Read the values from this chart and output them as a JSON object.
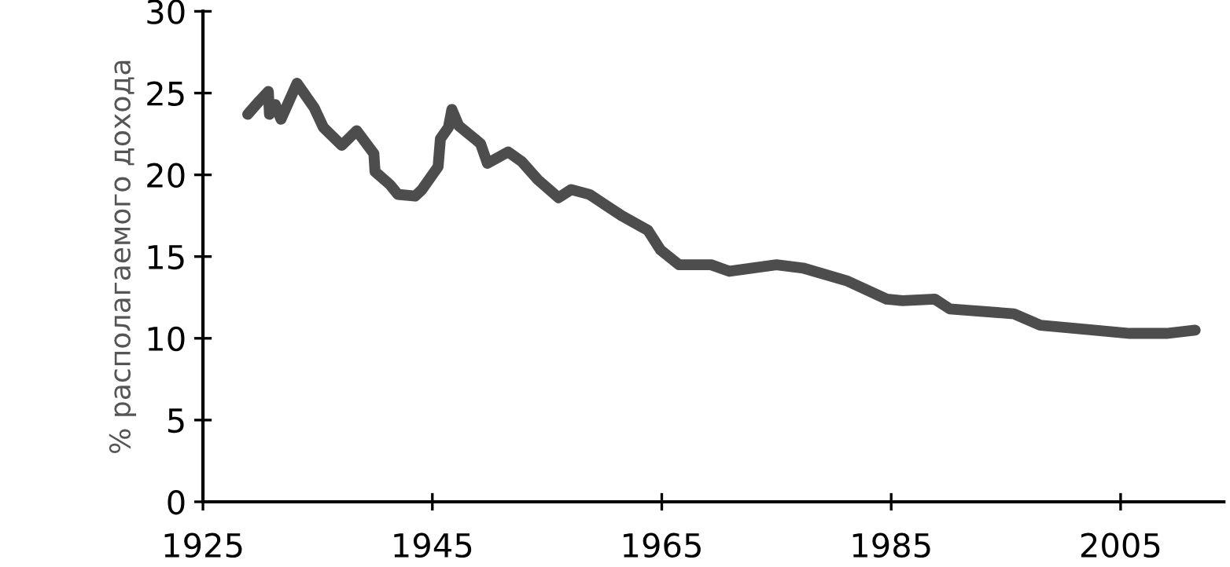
{
  "chart_data": {
    "type": "line",
    "ylabel": "% располагаемого дохода",
    "xlim": [
      1925,
      2014
    ],
    "xticks": [
      1925,
      1945,
      1965,
      1985,
      2005
    ],
    "ylim": [
      0,
      30
    ],
    "yticks": [
      0,
      5,
      10,
      15,
      20,
      25,
      30
    ],
    "grid": false,
    "legend": false,
    "marker": "none",
    "line_style": "solid",
    "series": [
      {
        "color": "#4d4d4d",
        "x": [
          1928.9,
          1929.9,
          1930.7,
          1930.8,
          1931.3,
          1931.8,
          1933.2,
          1934.7,
          1935.5,
          1937.1,
          1938.4,
          1939.9,
          1940.0,
          1941.3,
          1942.0,
          1943.5,
          1944.1,
          1945.5,
          1945.7,
          1946.4,
          1946.7,
          1947.3,
          1948.7,
          1949.2,
          1949.8,
          1951.6,
          1952.8,
          1954.2,
          1956.0,
          1957.1,
          1958.7,
          1961.5,
          1963.8,
          1964.9,
          1966.5,
          1969.3,
          1970.9,
          1975.0,
          1977.3,
          1981.2,
          1984.6,
          1986.0,
          1988.8,
          1990.1,
          1995.7,
          1998.0,
          2001.2,
          2005.8,
          2009.0,
          2011.5
        ],
        "values": [
          23.7,
          24.5,
          25.1,
          23.7,
          24.3,
          23.4,
          25.6,
          24.1,
          22.9,
          21.8,
          22.7,
          21.3,
          20.2,
          19.4,
          18.8,
          18.7,
          19.1,
          20.5,
          22.2,
          22.9,
          24.0,
          23.0,
          22.2,
          21.9,
          20.7,
          21.4,
          20.8,
          19.7,
          18.6,
          19.1,
          18.8,
          17.5,
          16.6,
          15.4,
          14.5,
          14.5,
          14.1,
          14.5,
          14.3,
          13.5,
          12.4,
          12.3,
          12.4,
          11.8,
          11.5,
          10.8,
          10.6,
          10.3,
          10.3,
          10.5
        ]
      }
    ]
  }
}
